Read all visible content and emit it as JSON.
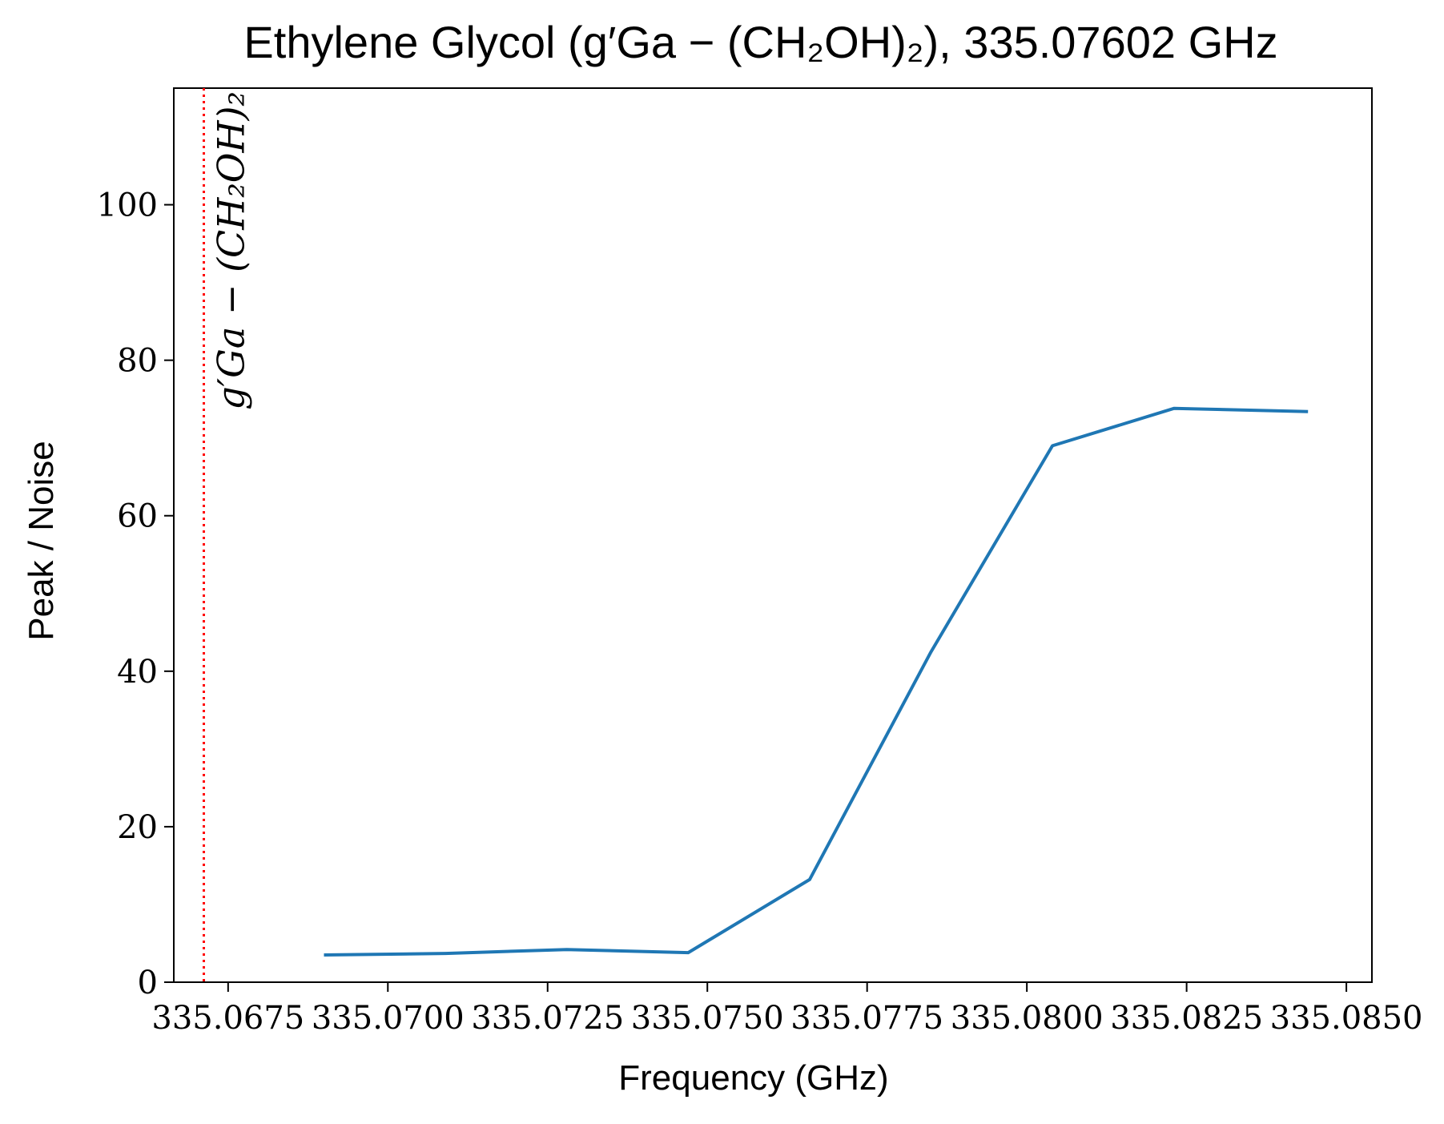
{
  "chart_data": {
    "type": "line",
    "title": "Ethylene Glycol (g′Ga − (CH₂OH)₂), 335.07602 GHz",
    "xlabel": "Frequency (GHz)",
    "ylabel": "Peak / Noise",
    "xlim": [
      335.06665,
      335.0854
    ],
    "ylim": [
      0,
      115
    ],
    "x_ticks": [
      335.0675,
      335.07,
      335.0725,
      335.075,
      335.0775,
      335.08,
      335.0825,
      335.085
    ],
    "x_tick_labels": [
      "335.0675",
      "335.0700",
      "335.0725",
      "335.0750",
      "335.0775",
      "335.0800",
      "335.0825",
      "335.0850"
    ],
    "y_ticks": [
      0,
      20,
      40,
      60,
      80,
      100
    ],
    "y_tick_labels": [
      "0",
      "20",
      "40",
      "60",
      "80",
      "100"
    ],
    "grid": false,
    "series": [
      {
        "color": "#1f77b4",
        "x": [
          335.069,
          335.0709,
          335.0728,
          335.0747,
          335.0766,
          335.0785,
          335.0804,
          335.0823,
          335.0844
        ],
        "y": [
          3.5,
          3.7,
          4.2,
          3.8,
          13.2,
          42.5,
          69.0,
          73.8,
          73.4
        ]
      }
    ],
    "annotations": [
      {
        "type": "vline",
        "x": 335.06712,
        "color": "#ff0000",
        "style": "dotted",
        "label": "g′Ga − (CH₂OH)₂"
      }
    ]
  }
}
